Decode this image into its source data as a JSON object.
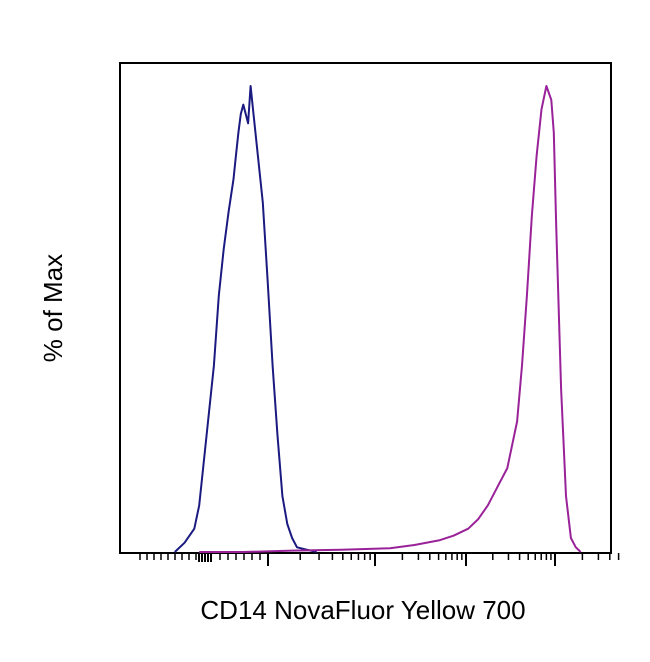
{
  "chart_data": {
    "type": "line",
    "title": "",
    "xlabel": "CD14 NovaFluor Yellow 700",
    "ylabel": "% of Max",
    "x_scale": "log (flow cytometry biexponential-style ticks, unlabeled)",
    "xlim": [
      0,
      100
    ],
    "ylim": [
      0,
      100
    ],
    "grid": false,
    "legend": "none",
    "series": [
      {
        "color": "#1a1a80",
        "x": [
          11,
          13,
          15,
          16,
          17,
          18,
          19,
          20,
          21,
          22,
          23,
          23.5,
          24,
          24.5,
          25,
          26,
          26.5,
          27,
          28,
          29,
          30,
          31,
          32,
          33,
          34,
          35,
          36,
          38,
          40
        ],
        "y": [
          0,
          2,
          5,
          10,
          20,
          30,
          40,
          55,
          65,
          73,
          80,
          85,
          90,
          94,
          96,
          92,
          100,
          95,
          85,
          75,
          58,
          40,
          25,
          12,
          6,
          3,
          1,
          0.5,
          0
        ]
      },
      {
        "color": "#992299",
        "x": [
          16,
          25,
          35,
          45,
          55,
          60,
          65,
          68,
          71,
          73,
          75,
          77,
          79,
          81,
          82,
          83,
          84,
          85,
          86,
          87,
          88,
          88.5,
          89,
          90,
          91,
          92,
          93,
          94
        ],
        "y": [
          0,
          0,
          0.3,
          0.5,
          0.8,
          1.5,
          2.5,
          3.5,
          5,
          7,
          10,
          14,
          18,
          28,
          40,
          55,
          72,
          85,
          95,
          100,
          97,
          90,
          70,
          35,
          12,
          3,
          1,
          0
        ]
      }
    ]
  }
}
